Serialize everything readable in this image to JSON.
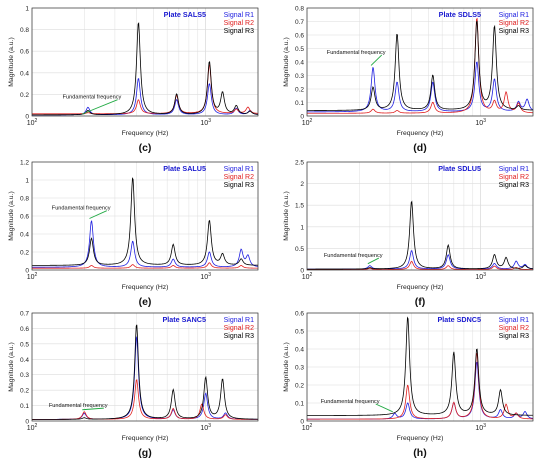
{
  "figure": {
    "x_label": "Frequency (Hz)",
    "y_label": "Magnitude (a.u.)",
    "annotation": "Fundamental frequency"
  },
  "colors": {
    "R1": "#2020e0",
    "R2": "#e02020",
    "R3": "#000000",
    "arrow": "#22aa44",
    "title": "#1a1ad0"
  },
  "chart_data": [
    {
      "type": "line",
      "panel_label": "(c)",
      "title": "Plate SALS5",
      "x_scale": "log",
      "xlim": [
        100,
        2000
      ],
      "ylim": [
        0,
        1
      ],
      "y_ticks": [
        0,
        0.2,
        0.4,
        0.6,
        0.8,
        1
      ],
      "x_ticks": [
        100,
        1000
      ],
      "grid": true,
      "legend": "top-right",
      "fundamental_frequency": 200,
      "annotation_position": [
        150,
        0.16
      ],
      "series": [
        {
          "name": "Signal R1",
          "baseline": 0.01,
          "peaks": [
            [
              210,
              0.08
            ],
            [
              410,
              0.35
            ],
            [
              680,
              0.15
            ],
            [
              1050,
              0.3
            ],
            [
              1500,
              0.07
            ],
            [
              1800,
              0.05
            ]
          ]
        },
        {
          "name": "Signal R2",
          "baseline": 0.02,
          "peaks": [
            [
              210,
              0.03
            ],
            [
              410,
              0.15
            ],
            [
              680,
              0.19
            ],
            [
              1050,
              0.48
            ],
            [
              1500,
              0.06
            ],
            [
              1750,
              0.08
            ]
          ]
        },
        {
          "name": "Signal R3",
          "baseline": 0.01,
          "peaks": [
            [
              210,
              0.05
            ],
            [
              410,
              0.87
            ],
            [
              680,
              0.2
            ],
            [
              1050,
              0.5
            ],
            [
              1250,
              0.21
            ],
            [
              1500,
              0.09
            ],
            [
              1800,
              0.04
            ]
          ]
        }
      ]
    },
    {
      "type": "line",
      "panel_label": "(d)",
      "title": "Plate SDLS5",
      "x_scale": "log",
      "xlim": [
        100,
        2000
      ],
      "ylim": [
        0,
        0.8
      ],
      "y_ticks": [
        0,
        0.1,
        0.2,
        0.3,
        0.4,
        0.5,
        0.6,
        0.7,
        0.8
      ],
      "x_ticks": [
        100,
        1000
      ],
      "grid": true,
      "legend": "top-right",
      "fundamental_frequency": 240,
      "annotation_position": [
        130,
        0.46
      ],
      "series": [
        {
          "name": "Signal R1",
          "baseline": 0.03,
          "peaks": [
            [
              240,
              0.36
            ],
            [
              330,
              0.25
            ],
            [
              530,
              0.25
            ],
            [
              950,
              0.4
            ],
            [
              1200,
              0.27
            ],
            [
              1650,
              0.1
            ],
            [
              1850,
              0.12
            ]
          ]
        },
        {
          "name": "Signal R2",
          "baseline": 0.02,
          "peaks": [
            [
              240,
              0.05
            ],
            [
              330,
              0.04
            ],
            [
              530,
              0.1
            ],
            [
              950,
              0.73
            ],
            [
              1200,
              0.1
            ],
            [
              1400,
              0.17
            ],
            [
              1650,
              0.09
            ]
          ]
        },
        {
          "name": "Signal R3",
          "baseline": 0.04,
          "peaks": [
            [
              240,
              0.21
            ],
            [
              330,
              0.61
            ],
            [
              530,
              0.3
            ],
            [
              950,
              0.7
            ],
            [
              1200,
              0.66
            ],
            [
              1650,
              0.07
            ]
          ]
        }
      ]
    },
    {
      "type": "line",
      "panel_label": "(e)",
      "title": "Plate SALU5",
      "x_scale": "log",
      "xlim": [
        100,
        2000
      ],
      "ylim": [
        0,
        1.2
      ],
      "y_ticks": [
        0,
        0.2,
        0.4,
        0.6,
        0.8,
        1,
        1.2
      ],
      "x_ticks": [
        100,
        1000
      ],
      "grid": true,
      "legend": "top-right",
      "fundamental_frequency": 220,
      "annotation_position": [
        130,
        0.67
      ],
      "series": [
        {
          "name": "Signal R1",
          "baseline": 0.03,
          "peaks": [
            [
              220,
              0.55
            ],
            [
              380,
              0.32
            ],
            [
              650,
              0.12
            ],
            [
              1050,
              0.2
            ],
            [
              1600,
              0.22
            ],
            [
              1750,
              0.15
            ]
          ]
        },
        {
          "name": "Signal R2",
          "baseline": 0.02,
          "peaks": [
            [
              220,
              0.05
            ],
            [
              380,
              0.06
            ],
            [
              650,
              0.05
            ],
            [
              1050,
              0.08
            ],
            [
              1600,
              0.05
            ]
          ]
        },
        {
          "name": "Signal R3",
          "baseline": 0.05,
          "peaks": [
            [
              220,
              0.35
            ],
            [
              380,
              1.03
            ],
            [
              650,
              0.28
            ],
            [
              1050,
              0.55
            ],
            [
              1250,
              0.17
            ],
            [
              1600,
              0.12
            ]
          ]
        }
      ]
    },
    {
      "type": "line",
      "panel_label": "(f)",
      "title": "Plate SDLU5",
      "x_scale": "log",
      "xlim": [
        100,
        2000
      ],
      "ylim": [
        0,
        2.5
      ],
      "y_ticks": [
        0,
        0.5,
        1,
        1.5,
        2,
        2.5
      ],
      "x_ticks": [
        100,
        1000
      ],
      "grid": true,
      "legend": "top-right",
      "fundamental_frequency": 230,
      "annotation_position": [
        125,
        0.3
      ],
      "series": [
        {
          "name": "Signal R1",
          "baseline": 0.02,
          "peaks": [
            [
              230,
              0.1
            ],
            [
              400,
              0.45
            ],
            [
              650,
              0.35
            ],
            [
              1200,
              0.15
            ],
            [
              1600,
              0.2
            ],
            [
              1800,
              0.12
            ]
          ]
        },
        {
          "name": "Signal R2",
          "baseline": 0.01,
          "peaks": [
            [
              230,
              0.04
            ],
            [
              400,
              0.2
            ],
            [
              650,
              0.1
            ],
            [
              1200,
              0.09
            ],
            [
              1600,
              0.06
            ]
          ]
        },
        {
          "name": "Signal R3",
          "baseline": 0.02,
          "peaks": [
            [
              230,
              0.05
            ],
            [
              400,
              1.6
            ],
            [
              650,
              0.57
            ],
            [
              1200,
              0.35
            ],
            [
              1400,
              0.28
            ],
            [
              1800,
              0.1
            ]
          ]
        }
      ]
    },
    {
      "type": "line",
      "panel_label": "(g)",
      "title": "Plate SANC5",
      "x_scale": "log",
      "xlim": [
        100,
        2000
      ],
      "ylim": [
        0,
        0.7
      ],
      "y_ticks": [
        0,
        0.1,
        0.2,
        0.3,
        0.4,
        0.5,
        0.6,
        0.7
      ],
      "x_ticks": [
        100,
        1000
      ],
      "grid": true,
      "legend": "top-right",
      "fundamental_frequency": 200,
      "annotation_position": [
        125,
        0.09
      ],
      "series": [
        {
          "name": "Signal R1",
          "baseline": 0.01,
          "peaks": [
            [
              200,
              0.05
            ],
            [
              400,
              0.55
            ],
            [
              650,
              0.07
            ],
            [
              1000,
              0.18
            ],
            [
              1300,
              0.05
            ]
          ]
        },
        {
          "name": "Signal R2",
          "baseline": 0.01,
          "peaks": [
            [
              200,
              0.06
            ],
            [
              400,
              0.27
            ],
            [
              650,
              0.08
            ],
            [
              950,
              0.11
            ],
            [
              1300,
              0.04
            ]
          ]
        },
        {
          "name": "Signal R3",
          "baseline": 0.01,
          "peaks": [
            [
              200,
              0.02
            ],
            [
              400,
              0.63
            ],
            [
              650,
              0.2
            ],
            [
              1000,
              0.28
            ],
            [
              1250,
              0.27
            ]
          ]
        }
      ]
    },
    {
      "type": "line",
      "panel_label": "(h)",
      "title": "Plate SDNC5",
      "x_scale": "log",
      "xlim": [
        100,
        2000
      ],
      "ylim": [
        0,
        0.6
      ],
      "y_ticks": [
        0,
        0.1,
        0.2,
        0.3,
        0.4,
        0.5,
        0.6
      ],
      "x_ticks": [
        100,
        1000
      ],
      "grid": true,
      "legend": "top-right",
      "fundamental_frequency": 320,
      "annotation_position": [
        120,
        0.1
      ],
      "series": [
        {
          "name": "Signal R1",
          "baseline": 0.01,
          "peaks": [
            [
              320,
              0.04
            ],
            [
              380,
              0.1
            ],
            [
              700,
              0.1
            ],
            [
              950,
              0.33
            ],
            [
              1300,
              0.06
            ],
            [
              1600,
              0.04
            ],
            [
              1800,
              0.05
            ]
          ]
        },
        {
          "name": "Signal R2",
          "baseline": 0.01,
          "peaks": [
            [
              380,
              0.2
            ],
            [
              700,
              0.1
            ],
            [
              950,
              0.38
            ],
            [
              1400,
              0.09
            ],
            [
              1600,
              0.04
            ]
          ]
        },
        {
          "name": "Signal R3",
          "baseline": 0.03,
          "peaks": [
            [
              380,
              0.58
            ],
            [
              700,
              0.38
            ],
            [
              950,
              0.4
            ],
            [
              1300,
              0.17
            ],
            [
              1800,
              0.03
            ]
          ]
        }
      ]
    }
  ]
}
